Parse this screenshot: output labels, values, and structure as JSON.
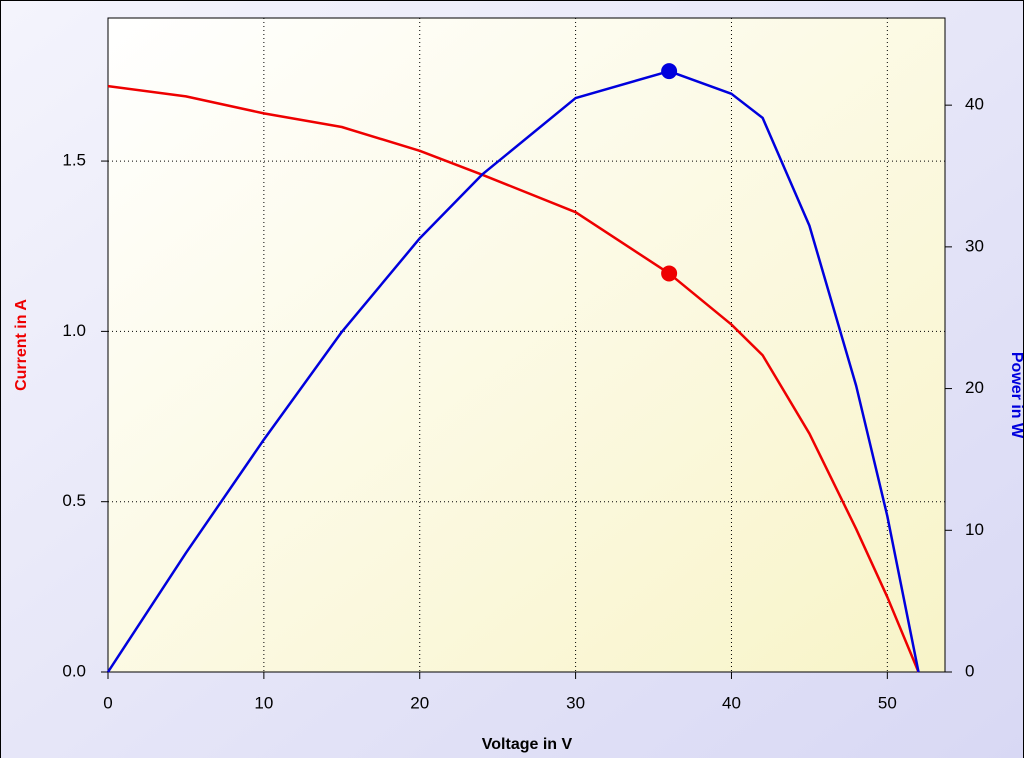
{
  "chart_data": {
    "type": "line",
    "x_label": "Voltage in V",
    "y_label": "Current in A",
    "y2_label": "Power in W",
    "x": [
      0,
      5,
      10,
      15,
      20,
      24,
      30,
      36,
      40,
      42,
      45,
      48,
      50,
      52
    ],
    "series": [
      {
        "name": "Current",
        "color": "#ee0000",
        "values": [
          1.72,
          1.69,
          1.64,
          1.6,
          1.53,
          1.46,
          1.35,
          1.17,
          1.02,
          0.93,
          0.7,
          0.42,
          0.22,
          0
        ],
        "highlight": {
          "x": 36,
          "value": 1.17
        }
      },
      {
        "name": "Power",
        "color": "#0000dd",
        "axis": "y2",
        "values": [
          0,
          8.4,
          16.4,
          24.0,
          30.6,
          35.1,
          40.5,
          42.4,
          40.8,
          39.1,
          31.5,
          20.2,
          11.0,
          0
        ],
        "highlight": {
          "x": 36,
          "value": 42.4
        }
      }
    ],
    "xlim": [
      0,
      53.7
    ],
    "xticks": [
      0,
      10,
      20,
      30,
      40,
      50
    ],
    "ylim": [
      0,
      1.92
    ],
    "yticks": [
      {
        "value": 0,
        "label": "0.0"
      },
      0.5,
      {
        "value": 1,
        "label": "1.0"
      },
      1.5
    ],
    "y2lim": [
      0,
      46.15
    ],
    "y2ticks": [
      0,
      10,
      20,
      30,
      40
    ],
    "grid": true
  }
}
